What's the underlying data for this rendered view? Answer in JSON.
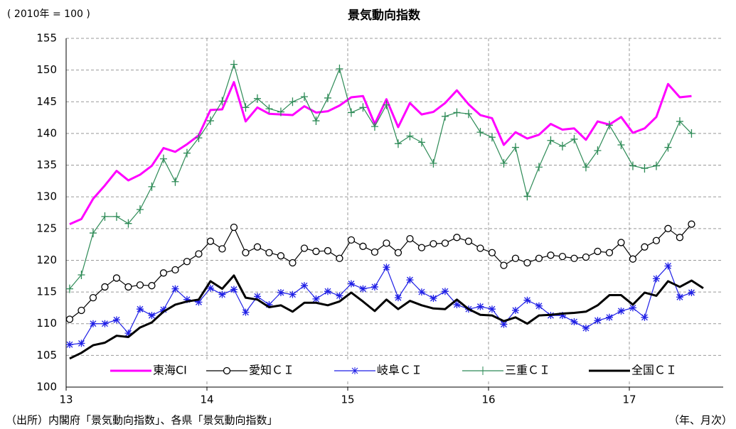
{
  "chart_data": {
    "type": "line",
    "title": "景気動向指数",
    "unit_label": "( 2010年 = 100 )",
    "source": "（出所）内閣府「景気動向指数」、各県「景気動向指数」",
    "x_unit": "（年、月次）",
    "x": [
      0,
      1,
      2,
      3,
      4,
      5,
      6,
      7,
      8,
      9,
      10,
      11,
      12,
      13,
      14,
      15,
      16,
      17,
      18,
      19,
      20,
      21,
      22,
      23,
      24,
      25,
      26,
      27,
      28,
      29,
      30,
      31,
      32,
      33,
      34,
      35,
      36,
      37,
      38,
      39,
      40,
      41,
      42,
      43,
      44,
      45,
      46,
      47,
      48,
      49,
      50,
      51,
      52,
      53,
      54
    ],
    "xlim": [
      -0.3,
      55.7
    ],
    "xticks": [
      {
        "value": -0.3,
        "label": "13"
      },
      {
        "value": 11.7,
        "label": "14"
      },
      {
        "value": 23.7,
        "label": "15"
      },
      {
        "value": 35.7,
        "label": "16"
      },
      {
        "value": 47.7,
        "label": "17"
      }
    ],
    "ylim": [
      100,
      155
    ],
    "yticks": [
      100,
      105,
      110,
      115,
      120,
      125,
      130,
      135,
      140,
      145,
      150,
      155
    ],
    "grid": true,
    "series": [
      {
        "name": "東海CI",
        "color": "#ff00ff",
        "marker": "none",
        "values": [
          125.7,
          126.5,
          129.7,
          131.8,
          134.1,
          132.6,
          133.5,
          134.9,
          137.7,
          137.1,
          138.3,
          139.7,
          143.7,
          143.8,
          148.1,
          141.9,
          144.1,
          143.1,
          143.0,
          142.9,
          144.3,
          143.3,
          143.5,
          144.4,
          145.7,
          145.9,
          141.5,
          145.4,
          141.0,
          144.8,
          143.0,
          143.4,
          144.8,
          146.8,
          144.6,
          142.9,
          142.4,
          138.2,
          140.2,
          139.2,
          139.8,
          141.5,
          140.6,
          140.8,
          139.0,
          141.9,
          141.4,
          142.6,
          140.1,
          140.8,
          142.6,
          147.8,
          145.7,
          145.9,
          null
        ]
      },
      {
        "name": "愛知ＣＩ",
        "color": "#000000",
        "marker": "circle",
        "values": [
          110.7,
          112.1,
          114.1,
          115.8,
          117.2,
          115.8,
          116.1,
          116.0,
          118.0,
          118.5,
          119.8,
          121.0,
          123.0,
          121.8,
          125.2,
          121.2,
          122.1,
          121.2,
          120.7,
          119.6,
          121.9,
          121.4,
          121.5,
          120.3,
          123.2,
          122.2,
          121.3,
          122.7,
          121.2,
          123.4,
          122.0,
          122.6,
          122.7,
          123.6,
          123.0,
          121.9,
          121.2,
          119.2,
          120.3,
          119.6,
          120.3,
          120.8,
          120.6,
          120.3,
          120.5,
          121.4,
          121.2,
          122.8,
          120.2,
          122.1,
          123.1,
          125.0,
          123.6,
          125.7,
          null
        ]
      },
      {
        "name": "岐阜ＣＩ",
        "color": "#1f1fe6",
        "marker": "asterisk",
        "values": [
          106.7,
          106.9,
          110.0,
          110.0,
          110.6,
          108.5,
          112.3,
          111.3,
          112.2,
          115.5,
          113.8,
          113.4,
          115.6,
          114.6,
          115.4,
          111.8,
          114.3,
          113.0,
          114.9,
          114.6,
          116.0,
          113.9,
          115.1,
          114.4,
          116.3,
          115.5,
          115.8,
          118.9,
          114.1,
          116.9,
          115.0,
          114.0,
          115.1,
          113.0,
          112.3,
          112.7,
          112.3,
          109.9,
          112.1,
          113.7,
          112.8,
          111.3,
          111.3,
          110.3,
          109.3,
          110.5,
          111.0,
          112.0,
          112.5,
          111.0,
          117.1,
          119.1,
          114.2,
          114.9,
          null
        ]
      },
      {
        "name": "三重ＣＩ",
        "color": "#2e8b57",
        "marker": "plus",
        "values": [
          115.5,
          117.7,
          124.3,
          126.9,
          126.9,
          125.8,
          128.0,
          131.6,
          136.0,
          132.4,
          136.9,
          139.3,
          142.0,
          145.1,
          150.9,
          144.1,
          145.5,
          143.9,
          143.4,
          145.0,
          145.8,
          142.0,
          145.6,
          150.2,
          143.3,
          144.1,
          141.1,
          144.5,
          138.4,
          139.6,
          138.6,
          135.3,
          142.7,
          143.3,
          143.1,
          140.2,
          139.4,
          135.3,
          137.8,
          130.1,
          134.7,
          138.9,
          138.0,
          139.1,
          134.7,
          137.3,
          141.3,
          138.2,
          134.9,
          134.5,
          134.9,
          137.8,
          141.9,
          140.0,
          null
        ]
      },
      {
        "name": "全国ＣＩ",
        "color": "#000000",
        "marker": "none",
        "values": [
          104.5,
          105.4,
          106.6,
          107.0,
          108.1,
          107.9,
          109.4,
          110.2,
          111.9,
          113.0,
          113.5,
          113.8,
          116.7,
          115.5,
          117.6,
          114.1,
          113.8,
          112.6,
          112.9,
          111.9,
          113.3,
          113.3,
          112.9,
          113.5,
          114.9,
          113.5,
          112.0,
          113.8,
          112.3,
          113.6,
          112.9,
          112.4,
          112.3,
          113.8,
          112.3,
          111.4,
          111.3,
          110.4,
          111.0,
          110.0,
          111.3,
          111.4,
          111.6,
          111.7,
          111.9,
          112.9,
          114.5,
          114.5,
          113.0,
          114.9,
          114.4,
          116.7,
          115.8,
          116.8,
          115.6
        ]
      }
    ]
  }
}
